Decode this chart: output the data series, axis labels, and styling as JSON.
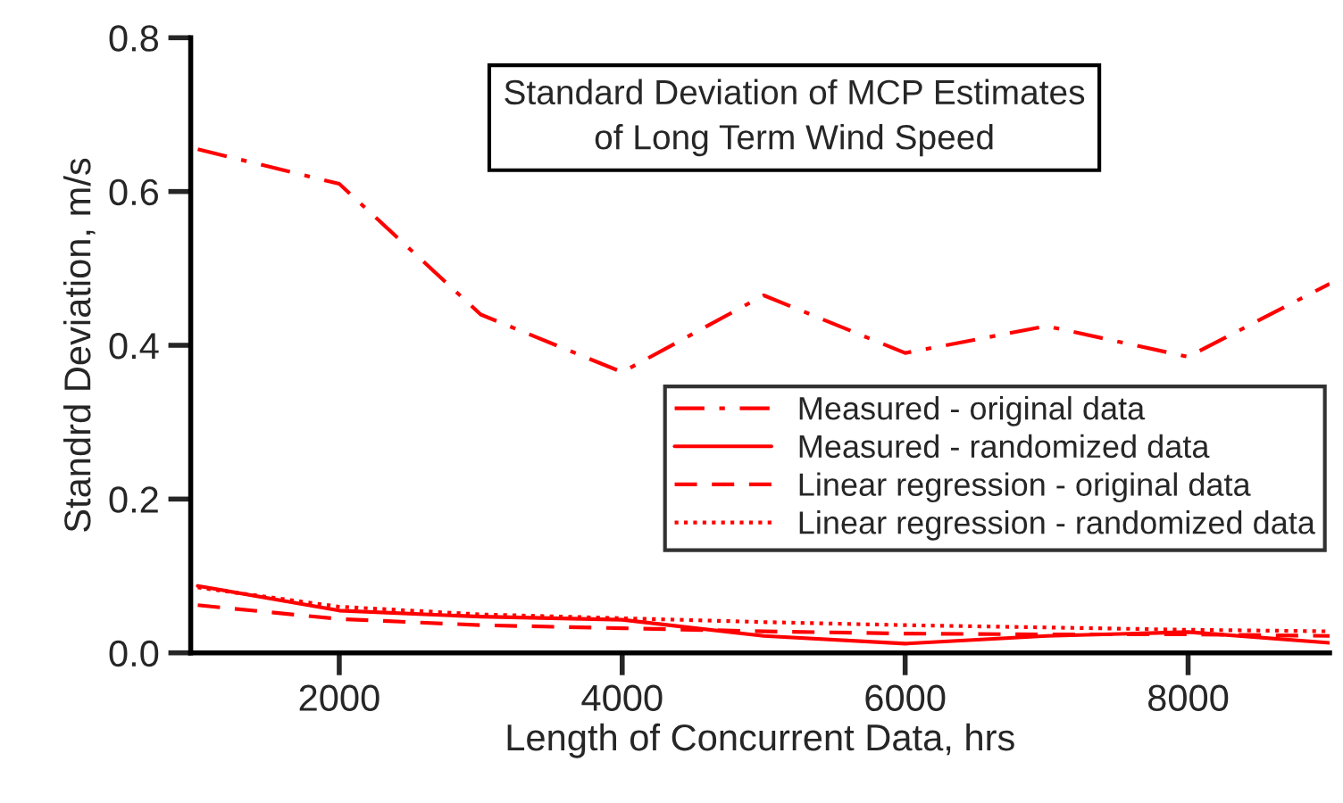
{
  "chart_data": {
    "type": "line",
    "title": "Standard Deviation of MCP Estimates\nof Long Term Wind Speed",
    "xlabel": "Length of Concurrent Data, hrs",
    "ylabel": "Standrd Deviation, m/s",
    "x": [
      1000,
      2000,
      3000,
      4000,
      5000,
      6000,
      7000,
      8000,
      9000
    ],
    "series": [
      {
        "name": "Measured - original data",
        "color": "#ff0000",
        "line_style": "dashdot",
        "values": [
          0.655,
          0.61,
          0.44,
          0.365,
          0.465,
          0.39,
          0.425,
          0.385,
          0.48
        ]
      },
      {
        "name": "Measured - randomized data",
        "color": "#ff0000",
        "line_style": "solid",
        "values": [
          0.087,
          0.055,
          0.047,
          0.043,
          0.022,
          0.012,
          0.022,
          0.027,
          0.013
        ]
      },
      {
        "name": "Linear regression - original data",
        "color": "#ff0000",
        "line_style": "dashed",
        "values": [
          0.062,
          0.044,
          0.036,
          0.032,
          0.028,
          0.025,
          0.024,
          0.024,
          0.022
        ]
      },
      {
        "name": "Linear regression - randomized data",
        "color": "#ff0000",
        "line_style": "dotted",
        "values": [
          0.085,
          0.06,
          0.05,
          0.045,
          0.04,
          0.036,
          0.033,
          0.03,
          0.028
        ]
      }
    ],
    "xlim": [
      950,
      9000
    ],
    "ylim": [
      0,
      0.8
    ],
    "xticks": [
      2000,
      4000,
      6000,
      8000
    ],
    "yticks": [
      {
        "value": 0,
        "label": "0.0"
      },
      {
        "value": 0.2,
        "label": "0.2"
      },
      {
        "value": 0.4,
        "label": "0.4"
      },
      {
        "value": 0.6,
        "label": "0.6"
      },
      {
        "value": 0.8,
        "label": "0.8"
      }
    ],
    "grid": false,
    "legend": "right",
    "marker": "none"
  }
}
